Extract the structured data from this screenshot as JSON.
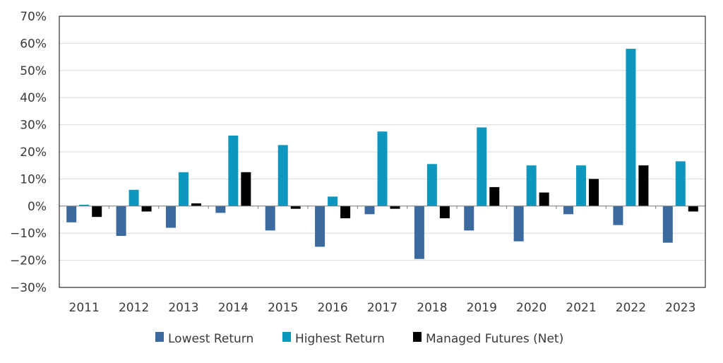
{
  "chart_data": {
    "type": "bar",
    "categories": [
      "2011",
      "2012",
      "2013",
      "2014",
      "2015",
      "2016",
      "2017",
      "2018",
      "2019",
      "2020",
      "2021",
      "2022",
      "2023"
    ],
    "series": [
      {
        "name": "Lowest Return",
        "color": "#3b6a9e",
        "values": [
          -6,
          -11,
          -8,
          -2.5,
          -9,
          -15,
          -3,
          -19.5,
          -9,
          -13,
          -3,
          -7,
          -13.5
        ]
      },
      {
        "name": "Highest Return",
        "color": "#0d97bf",
        "values": [
          0.5,
          6,
          12.5,
          26,
          22.5,
          3.5,
          27.5,
          15.5,
          29,
          15,
          15,
          58,
          16.5
        ]
      },
      {
        "name": "Managed Futures (Net)",
        "color": "#000000",
        "values": [
          -4,
          -2,
          1,
          12.5,
          -1,
          -4.5,
          -1,
          -4.5,
          7,
          5,
          10,
          15,
          -2
        ]
      }
    ],
    "ylim": [
      -30,
      70
    ],
    "yticks": [
      -30,
      -20,
      -10,
      0,
      10,
      20,
      30,
      40,
      50,
      60,
      70
    ],
    "ytick_labels": [
      "−30%",
      "−20%",
      "−10%",
      "0%",
      "10%",
      "20%",
      "30%",
      "40%",
      "50%",
      "60%",
      "70%"
    ],
    "grid": true,
    "legend_position": "bottom",
    "title": "",
    "xlabel": "",
    "ylabel": ""
  }
}
